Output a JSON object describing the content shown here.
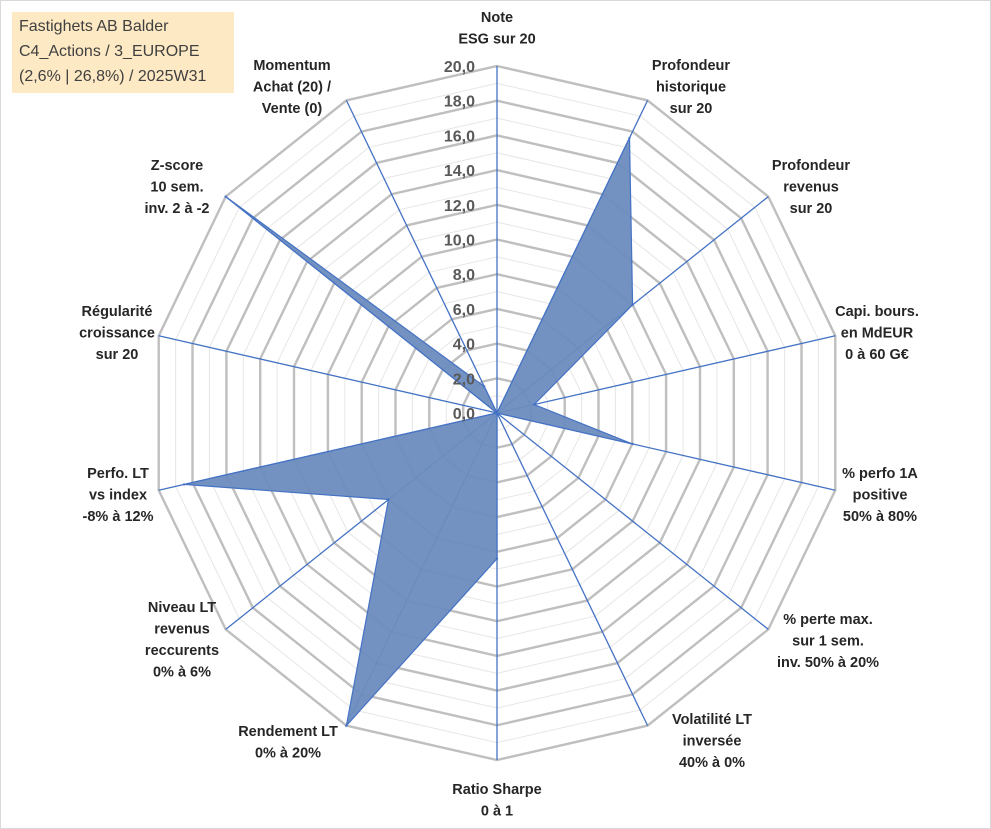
{
  "title_box": {
    "line1": "Fastighets AB Balder",
    "line2": "C4_Actions / 3_EUROPE",
    "line3": "(2,6% | 26,8%) / 2025W31",
    "background": "#fde9c3"
  },
  "chart_data": {
    "type": "radar",
    "title": "Fastighets AB Balder C4_Actions / 3_EUROPE (2,6% | 26,8%) / 2025W31",
    "rmin": 0,
    "rmax": 20,
    "tick_step": 2,
    "tick_labels": [
      "0,0",
      "2,0",
      "4,0",
      "6,0",
      "8,0",
      "10,0",
      "12,0",
      "14,0",
      "16,0",
      "18,0",
      "20,0"
    ],
    "grid": true,
    "legend": "none",
    "colors": {
      "fill": "#6b8cbe",
      "stroke": "#4472c4",
      "spoke": "#4472c4",
      "grid_major": "#bfbfbf",
      "grid_minor": "#e6e6e6"
    },
    "categories": [
      [
        "Note",
        "ESG sur 20"
      ],
      [
        "Profondeur",
        "historique",
        "sur 20"
      ],
      [
        "Profondeur",
        "revenus",
        "sur 20"
      ],
      [
        "Capi. bours.",
        "en MdEUR",
        "0 à 60 G€"
      ],
      [
        "% perfo 1A",
        "positive",
        "50% à 80%"
      ],
      [
        "% perte max.",
        "sur 1 sem.",
        "inv. 50% à 20%"
      ],
      [
        "Volatilité LT",
        "inversée",
        "40% à 0%"
      ],
      [
        "Ratio Sharpe",
        "0 à 1"
      ],
      [
        "Rendement LT",
        "0% à 20%"
      ],
      [
        "Niveau LT",
        "revenus",
        "reccurents",
        "0% à 6%"
      ],
      [
        "Perfo. LT",
        "vs index",
        "-8% à 12%"
      ],
      [
        "Régularité",
        "croissance",
        "sur 20"
      ],
      [
        "Z-score",
        "10 sem.",
        "inv. 2 à -2"
      ],
      [
        "Momentum",
        "Achat (20) /",
        "Vente (0)"
      ]
    ],
    "series": [
      {
        "values": [
          0,
          17.6,
          10.0,
          2.2,
          8.0,
          0,
          0,
          8.4,
          20,
          8.0,
          18.5,
          0,
          20,
          1.7
        ]
      }
    ]
  }
}
